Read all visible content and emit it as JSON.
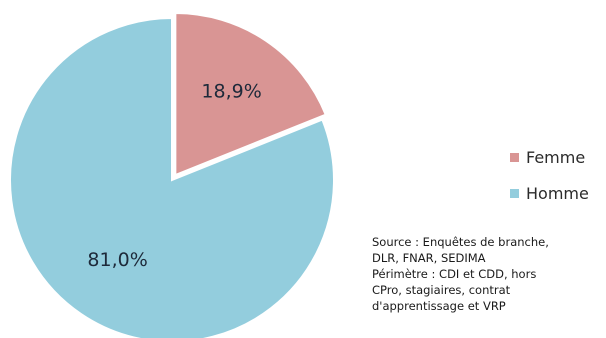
{
  "chart_data": {
    "type": "pie",
    "categories": [
      "Femme",
      "Homme"
    ],
    "values": [
      18.9,
      81.0
    ],
    "data_labels": [
      "18,9%",
      "81,0%"
    ],
    "colors": [
      "#d99594",
      "#93cddd"
    ],
    "start_angle": "12 o'clock, clockwise",
    "exploded_slice": "Femme",
    "legend_position": "right"
  },
  "notes": {
    "lines": [
      "Source : Enquêtes de branche,",
      "DLR, FNAR, SEDIMA",
      "Périmètre : CDI et CDD, hors",
      "CPro, stagiaires, contrat",
      "d'apprentissage et VRP"
    ]
  }
}
